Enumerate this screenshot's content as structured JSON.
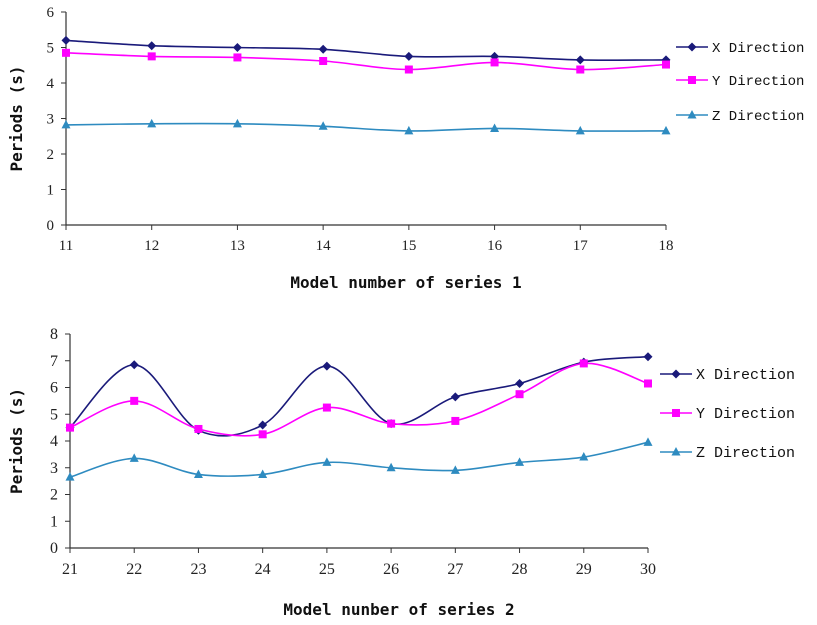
{
  "chart_data": [
    {
      "type": "line",
      "x": [
        11,
        12,
        13,
        14,
        15,
        16,
        17,
        18
      ],
      "xlabel": "Model number of series 1",
      "ylabel": "Periods (s)",
      "ylim": [
        0,
        6
      ],
      "yticks": [
        0,
        1,
        2,
        3,
        4,
        5,
        6
      ],
      "grid": false,
      "legend_position": "right",
      "series": [
        {
          "name": "X Direction",
          "color": "#1a1a7a",
          "marker": "diamond",
          "values": [
            5.2,
            5.05,
            5.0,
            4.95,
            4.75,
            4.75,
            4.65,
            4.65
          ]
        },
        {
          "name": "Y Direction",
          "color": "#ff00ff",
          "marker": "square",
          "values": [
            4.85,
            4.75,
            4.72,
            4.62,
            4.38,
            4.58,
            4.38,
            4.52
          ]
        },
        {
          "name": "Z Direction",
          "color": "#2e8bc0",
          "marker": "triangle",
          "values": [
            2.82,
            2.85,
            2.85,
            2.78,
            2.65,
            2.72,
            2.65,
            2.65
          ]
        }
      ]
    },
    {
      "type": "line",
      "x": [
        21,
        22,
        23,
        24,
        25,
        26,
        27,
        28,
        29,
        30
      ],
      "xlabel": "Model nunber of series 2",
      "ylabel": "Periods (s)",
      "ylim": [
        0,
        8
      ],
      "yticks": [
        0,
        1,
        2,
        3,
        4,
        5,
        6,
        7,
        8
      ],
      "grid": false,
      "legend_position": "right",
      "series": [
        {
          "name": "X Direction",
          "color": "#1a1a7a",
          "marker": "diamond",
          "values": [
            4.5,
            6.85,
            4.4,
            4.6,
            6.8,
            4.65,
            5.65,
            6.15,
            6.95,
            7.15
          ]
        },
        {
          "name": "Y Direction",
          "color": "#ff00ff",
          "marker": "square",
          "values": [
            4.5,
            5.5,
            4.45,
            4.25,
            5.25,
            4.65,
            4.75,
            5.75,
            6.9,
            6.15
          ]
        },
        {
          "name": "Z Direction",
          "color": "#2e8bc0",
          "marker": "triangle",
          "values": [
            2.65,
            3.35,
            2.75,
            2.75,
            3.2,
            3.0,
            2.9,
            3.2,
            3.4,
            3.95
          ]
        }
      ]
    }
  ]
}
